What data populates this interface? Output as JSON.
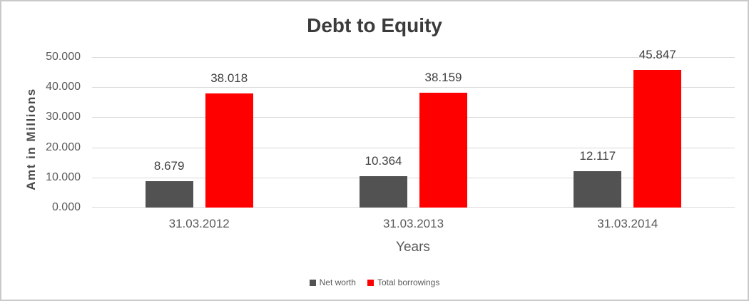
{
  "chart_data": {
    "type": "bar",
    "title": "Debt to Equity",
    "xlabel": "Years",
    "ylabel": "Amt in Millions",
    "categories": [
      "31.03.2012",
      "31.03.2013",
      "31.03.2014"
    ],
    "series": [
      {
        "name": "Net worth",
        "color": "#525252",
        "values": [
          8.679,
          10.364,
          12.117
        ],
        "labels": [
          "8.679",
          "10.364",
          "12.117"
        ]
      },
      {
        "name": "Total borrowings",
        "color": "#ff0000",
        "values": [
          38.018,
          38.159,
          45.847
        ],
        "labels": [
          "38.018",
          "38.159",
          "45.847"
        ]
      }
    ],
    "y_axis": {
      "min": 0,
      "max": 50,
      "tick_step": 10,
      "tick_labels": [
        "0.000",
        "10.000",
        "20.000",
        "30.000",
        "40.000",
        "50.000"
      ]
    },
    "grid": true,
    "legend_position": "bottom",
    "gridline_color": "#d9d9d9",
    "border_color": "#c9c9c9"
  }
}
